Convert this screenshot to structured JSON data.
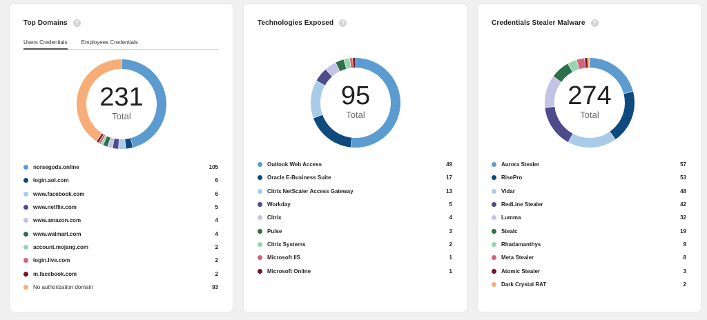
{
  "cards": [
    {
      "title": "Top Domains",
      "help_icon": "question-circle-icon",
      "tabs": [
        {
          "label": "Users Credentials",
          "active": true
        },
        {
          "label": "Employees Credentials",
          "active": false
        }
      ],
      "total_value": "231",
      "total_label": "Total",
      "chart_data": {
        "type": "pie",
        "title": "",
        "total": 231,
        "categories": [
          "norsegods.online",
          "login.aol.com",
          "www.facebook.com",
          "www.netflix.com",
          "www.amazon.com",
          "www.walmart.com",
          "account.mojang.com",
          "login.live.com",
          "m.facebook.com",
          "No authorization domain"
        ],
        "values": [
          105,
          6,
          6,
          5,
          4,
          4,
          2,
          2,
          2,
          93
        ],
        "colors": [
          "#5b9bd0",
          "#0e4a7d",
          "#a9cbe8",
          "#4e4b8c",
          "#c4c3e6",
          "#2d7049",
          "#99d4b1",
          "#d06479",
          "#6e1825",
          "#f7ad78"
        ]
      },
      "legend": [
        {
          "label": "norsegods.online",
          "value": "105",
          "plain": false
        },
        {
          "label": "login.aol.com",
          "value": "6",
          "plain": false
        },
        {
          "label": "www.facebook.com",
          "value": "6",
          "plain": false
        },
        {
          "label": "www.netflix.com",
          "value": "5",
          "plain": false
        },
        {
          "label": "www.amazon.com",
          "value": "4",
          "plain": false
        },
        {
          "label": "www.walmart.com",
          "value": "4",
          "plain": false
        },
        {
          "label": "account.mojang.com",
          "value": "2",
          "plain": false
        },
        {
          "label": "login.live.com",
          "value": "2",
          "plain": false
        },
        {
          "label": "m.facebook.com",
          "value": "2",
          "plain": false
        },
        {
          "label": "No authorization domain",
          "value": "93",
          "plain": true
        }
      ]
    },
    {
      "title": "Technologies Exposed",
      "help_icon": "question-circle-icon",
      "tabs": [],
      "total_value": "95",
      "total_label": "Total",
      "chart_data": {
        "type": "pie",
        "title": "",
        "total": 95,
        "categories": [
          "Outlook Web Access",
          "Oracle E-Business Suite",
          "Citrix NetScaler Access Gateway",
          "Workday",
          "Citrix",
          "Pulse",
          "Citrix Systems",
          "Microsoft IIS",
          "Microsoft Online"
        ],
        "values": [
          49,
          17,
          13,
          5,
          4,
          3,
          2,
          1,
          1
        ],
        "colors": [
          "#5b9bd0",
          "#0e4a7d",
          "#a9cbe8",
          "#4e4b8c",
          "#c4c3e6",
          "#2d7049",
          "#99d4b1",
          "#d06479",
          "#6e1825"
        ]
      },
      "legend": [
        {
          "label": "Outlook Web Access",
          "value": "49",
          "plain": false
        },
        {
          "label": "Oracle E-Business Suite",
          "value": "17",
          "plain": false
        },
        {
          "label": "Citrix NetScaler Access Gateway",
          "value": "13",
          "plain": false
        },
        {
          "label": "Workday",
          "value": "5",
          "plain": false
        },
        {
          "label": "Citrix",
          "value": "4",
          "plain": false
        },
        {
          "label": "Pulse",
          "value": "3",
          "plain": false
        },
        {
          "label": "Citrix Systems",
          "value": "2",
          "plain": false
        },
        {
          "label": "Microsoft IIS",
          "value": "1",
          "plain": false
        },
        {
          "label": "Microsoft Online",
          "value": "1",
          "plain": false
        }
      ]
    },
    {
      "title": "Credentials Stealer Malware",
      "help_icon": "question-circle-icon",
      "tabs": [],
      "total_value": "274",
      "total_label": "Total",
      "chart_data": {
        "type": "pie",
        "title": "",
        "total": 274,
        "categories": [
          "Aurora Stealer",
          "RisePro",
          "Vidar",
          "RedLine Stealer",
          "Lumma",
          "Stealc",
          "Rhadamanthys",
          "Meta Stealer",
          "Atomic Stealer",
          "Dark Crystal RAT"
        ],
        "values": [
          57,
          53,
          48,
          42,
          32,
          19,
          9,
          8,
          3,
          2
        ],
        "colors": [
          "#5b9bd0",
          "#0e4a7d",
          "#a9cbe8",
          "#4e4b8c",
          "#c4c3e6",
          "#2d7049",
          "#99d4b1",
          "#d06479",
          "#6e1825",
          "#f7ad78"
        ]
      },
      "legend": [
        {
          "label": "Aurora Stealer",
          "value": "57",
          "plain": false
        },
        {
          "label": "RisePro",
          "value": "53",
          "plain": false
        },
        {
          "label": "Vidar",
          "value": "48",
          "plain": false
        },
        {
          "label": "RedLine Stealer",
          "value": "42",
          "plain": false
        },
        {
          "label": "Lumma",
          "value": "32",
          "plain": false
        },
        {
          "label": "Stealc",
          "value": "19",
          "plain": false
        },
        {
          "label": "Rhadamanthys",
          "value": "9",
          "plain": false
        },
        {
          "label": "Meta Stealer",
          "value": "8",
          "plain": false
        },
        {
          "label": "Atomic Stealer",
          "value": "3",
          "plain": false
        },
        {
          "label": "Dark Crystal RAT",
          "value": "2",
          "plain": false
        }
      ]
    }
  ]
}
